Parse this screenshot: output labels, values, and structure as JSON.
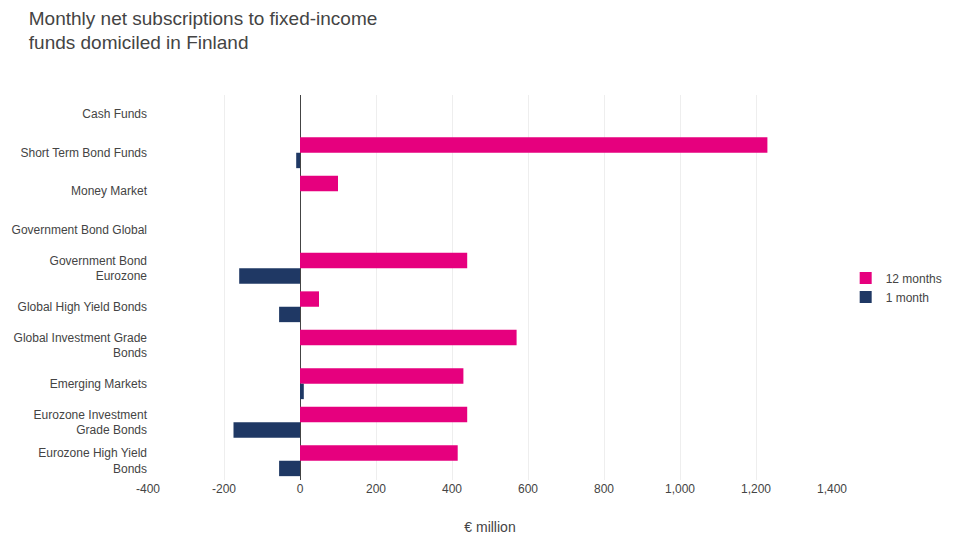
{
  "chart_data": {
    "type": "bar",
    "orientation": "horizontal",
    "title": "Monthly net subscriptions to fixed-income\nfunds domiciled in Finland",
    "xlabel": "€ million",
    "categories": [
      "Cash Funds",
      "Short Term Bond Funds",
      "Money Market",
      "Government Bond Global",
      "Government Bond\nEurozone",
      "Global High Yield Bonds",
      "Global Investment Grade\nBonds",
      "Emerging Markets",
      "Eurozone Investment\nGrade Bonds",
      "Eurozone High Yield\nBonds"
    ],
    "series": [
      {
        "name": "12 months",
        "color": "#e6007e",
        "values": [
          0,
          1230,
          100,
          0,
          440,
          50,
          570,
          430,
          440,
          415
        ]
      },
      {
        "name": "1 month",
        "color": "#1f3864",
        "values": [
          0,
          -10,
          0,
          0,
          -160,
          -55,
          0,
          10,
          -175,
          -55
        ]
      }
    ],
    "xlim": [
      -400,
      1400
    ],
    "xticks": [
      -400,
      -200,
      0,
      200,
      400,
      600,
      800,
      1000,
      {
        "value": 1000,
        "label": "1,000"
      },
      {
        "value": 1200,
        "label": "1,200"
      },
      {
        "value": 1400,
        "label": "1,400"
      }
    ],
    "grid": true,
    "legend": "right"
  }
}
